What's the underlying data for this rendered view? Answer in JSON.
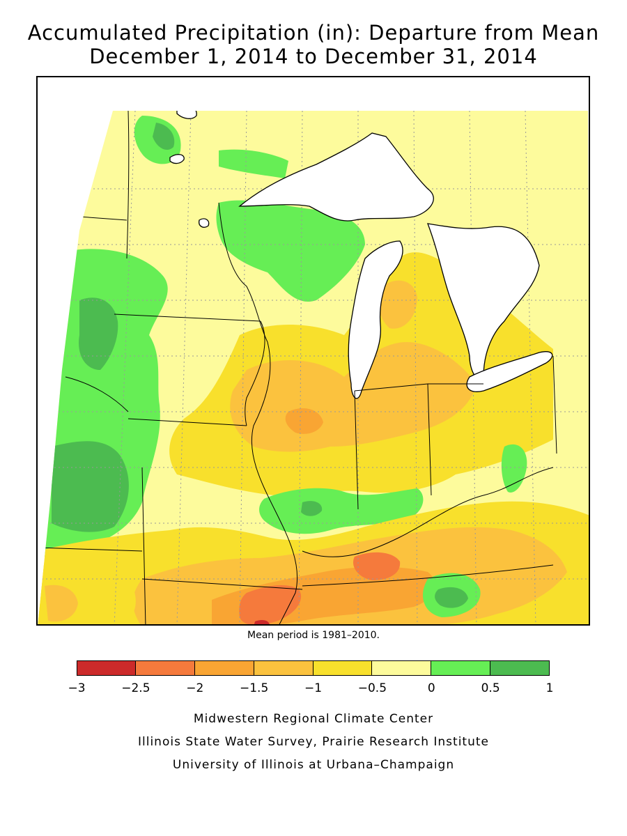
{
  "title": {
    "line1": "Accumulated Precipitation (in): Departure from Mean",
    "line2": "December 1, 2014 to December 31, 2014"
  },
  "mean_note": "Mean period is 1981–2010.",
  "legend": {
    "ticks": [
      "−3",
      "−2.5",
      "−2",
      "−1.5",
      "−1",
      "−0.5",
      "0",
      "0.5",
      "1"
    ],
    "bins": [
      {
        "from": -3,
        "to": -2.5,
        "color": "#cc2a2a"
      },
      {
        "from": -2.5,
        "to": -2,
        "color": "#f57a3c"
      },
      {
        "from": -2,
        "to": -1.5,
        "color": "#f9a533"
      },
      {
        "from": -1.5,
        "to": -1,
        "color": "#fbc23e"
      },
      {
        "from": -1,
        "to": -0.5,
        "color": "#f8e02c"
      },
      {
        "from": -0.5,
        "to": 0,
        "color": "#fdfb9c"
      },
      {
        "from": 0,
        "to": 0.5,
        "color": "#66ee55"
      },
      {
        "from": 0.5,
        "to": 1,
        "color": "#4cbb50"
      }
    ]
  },
  "map": {
    "region": "Midwest United States",
    "colors": {
      "water": "#ffffff",
      "boundary": "#000000",
      "graticule": "#999999"
    }
  },
  "credits": {
    "line1": "Midwestern Regional Climate Center",
    "line2": "Illinois State Water Survey, Prairie Research Institute",
    "line3": "University of Illinois at Urbana–Champaign"
  }
}
